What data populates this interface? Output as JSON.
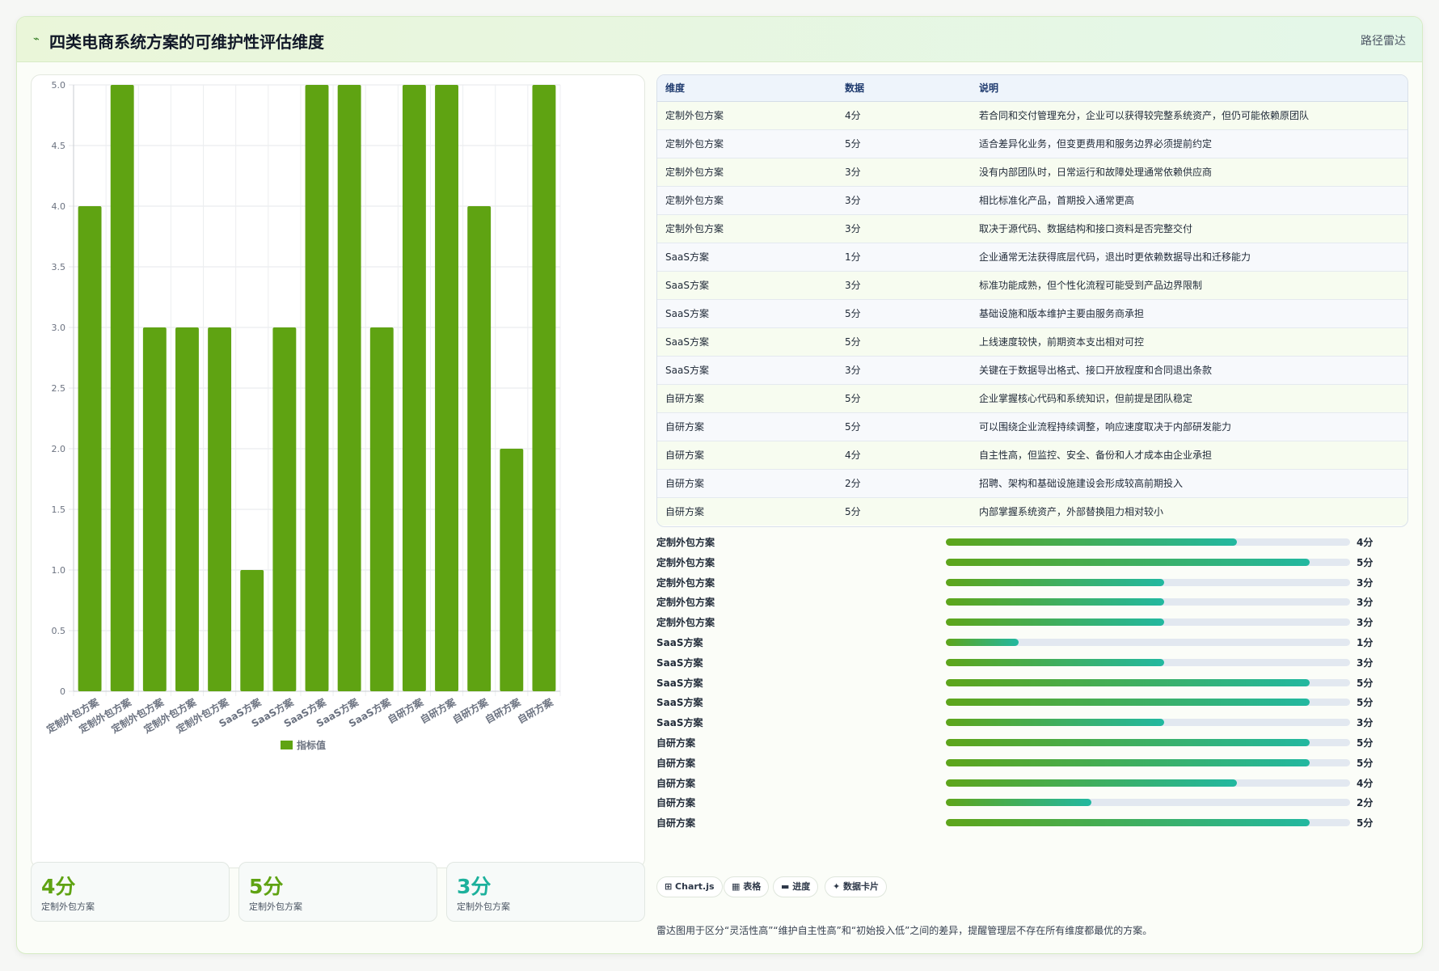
{
  "header": {
    "icon": "pulse-icon",
    "icon_glyph": "⌁",
    "title": "四类电商系统方案的可维护性评估维度",
    "tag": "路径雷达"
  },
  "colors": {
    "bar": "#5fa312",
    "accent_green": "#5ea51a",
    "accent_teal": "#22b8a0",
    "stat_green": "#5fa312",
    "stat_teal": "#1db19c"
  },
  "chart_data": {
    "type": "bar",
    "categories": [
      "定制外包方案",
      "定制外包方案",
      "定制外包方案",
      "定制外包方案",
      "定制外包方案",
      "SaaS方案",
      "SaaS方案",
      "SaaS方案",
      "SaaS方案",
      "SaaS方案",
      "自研方案",
      "自研方案",
      "自研方案",
      "自研方案",
      "自研方案"
    ],
    "series": [
      {
        "name": "指标值",
        "values": [
          4,
          5,
          3,
          3,
          3,
          1,
          3,
          5,
          5,
          3,
          5,
          5,
          4,
          2,
          5
        ]
      }
    ],
    "ylim": [
      0,
      5
    ],
    "yticks": [
      "0",
      "0.5",
      "1.0",
      "1.5",
      "2.0",
      "2.5",
      "3.0",
      "3.5",
      "4.0",
      "4.5",
      "5.0"
    ],
    "grid": true,
    "legend": "bottom"
  },
  "table": {
    "headers": [
      "维度",
      "数据",
      "说明"
    ],
    "rows": [
      [
        "定制外包方案",
        "4分",
        "若合同和交付管理充分，企业可以获得较完整系统资产，但仍可能依赖原团队"
      ],
      [
        "定制外包方案",
        "5分",
        "适合差异化业务，但变更费用和服务边界必须提前约定"
      ],
      [
        "定制外包方案",
        "3分",
        "没有内部团队时，日常运行和故障处理通常依赖供应商"
      ],
      [
        "定制外包方案",
        "3分",
        "相比标准化产品，首期投入通常更高"
      ],
      [
        "定制外包方案",
        "3分",
        "取决于源代码、数据结构和接口资料是否完整交付"
      ],
      [
        "SaaS方案",
        "1分",
        "企业通常无法获得底层代码，退出时更依赖数据导出和迁移能力"
      ],
      [
        "SaaS方案",
        "3分",
        "标准功能成熟，但个性化流程可能受到产品边界限制"
      ],
      [
        "SaaS方案",
        "5分",
        "基础设施和版本维护主要由服务商承担"
      ],
      [
        "SaaS方案",
        "5分",
        "上线速度较快，前期资本支出相对可控"
      ],
      [
        "SaaS方案",
        "3分",
        "关键在于数据导出格式、接口开放程度和合同退出条款"
      ],
      [
        "自研方案",
        "5分",
        "企业掌握核心代码和系统知识，但前提是团队稳定"
      ],
      [
        "自研方案",
        "5分",
        "可以围绕企业流程持续调整，响应速度取决于内部研发能力"
      ],
      [
        "自研方案",
        "4分",
        "自主性高，但监控、安全、备份和人才成本由企业承担"
      ],
      [
        "自研方案",
        "2分",
        "招聘、架构和基础设施建设会形成较高前期投入"
      ],
      [
        "自研方案",
        "5分",
        "内部掌握系统资产，外部替换阻力相对较小"
      ]
    ]
  },
  "progress": {
    "max": 5,
    "items": [
      {
        "label": "定制外包方案",
        "value": 4,
        "value_text": "4分"
      },
      {
        "label": "定制外包方案",
        "value": 5,
        "value_text": "5分"
      },
      {
        "label": "定制外包方案",
        "value": 3,
        "value_text": "3分"
      },
      {
        "label": "定制外包方案",
        "value": 3,
        "value_text": "3分"
      },
      {
        "label": "定制外包方案",
        "value": 3,
        "value_text": "3分"
      },
      {
        "label": "SaaS方案",
        "value": 1,
        "value_text": "1分"
      },
      {
        "label": "SaaS方案",
        "value": 3,
        "value_text": "3分"
      },
      {
        "label": "SaaS方案",
        "value": 5,
        "value_text": "5分"
      },
      {
        "label": "SaaS方案",
        "value": 5,
        "value_text": "5分"
      },
      {
        "label": "SaaS方案",
        "value": 3,
        "value_text": "3分"
      },
      {
        "label": "自研方案",
        "value": 5,
        "value_text": "5分"
      },
      {
        "label": "自研方案",
        "value": 5,
        "value_text": "5分"
      },
      {
        "label": "自研方案",
        "value": 4,
        "value_text": "4分"
      },
      {
        "label": "自研方案",
        "value": 2,
        "value_text": "2分"
      },
      {
        "label": "自研方案",
        "value": 5,
        "value_text": "5分"
      }
    ]
  },
  "stats": [
    {
      "value": "4分",
      "label": "定制外包方案",
      "color": "#5fa312"
    },
    {
      "value": "5分",
      "label": "定制外包方案",
      "color": "#5fa312"
    },
    {
      "value": "3分",
      "label": "定制外包方案",
      "color": "#1db19c"
    }
  ],
  "chips": [
    {
      "icon": "table-icon",
      "label": "⊞ Chart.js"
    },
    {
      "icon": "grid-icon",
      "label": "▦ 表格"
    },
    {
      "icon": "progress-icon",
      "label": "▬ 进度"
    },
    {
      "icon": "sparkle-icon",
      "label": "✦ 数据卡片"
    }
  ],
  "footnote": "雷达图用于区分“灵活性高”“维护自主性高”和“初始投入低”之间的差异，提醒管理层不存在所有维度都最优的方案。"
}
